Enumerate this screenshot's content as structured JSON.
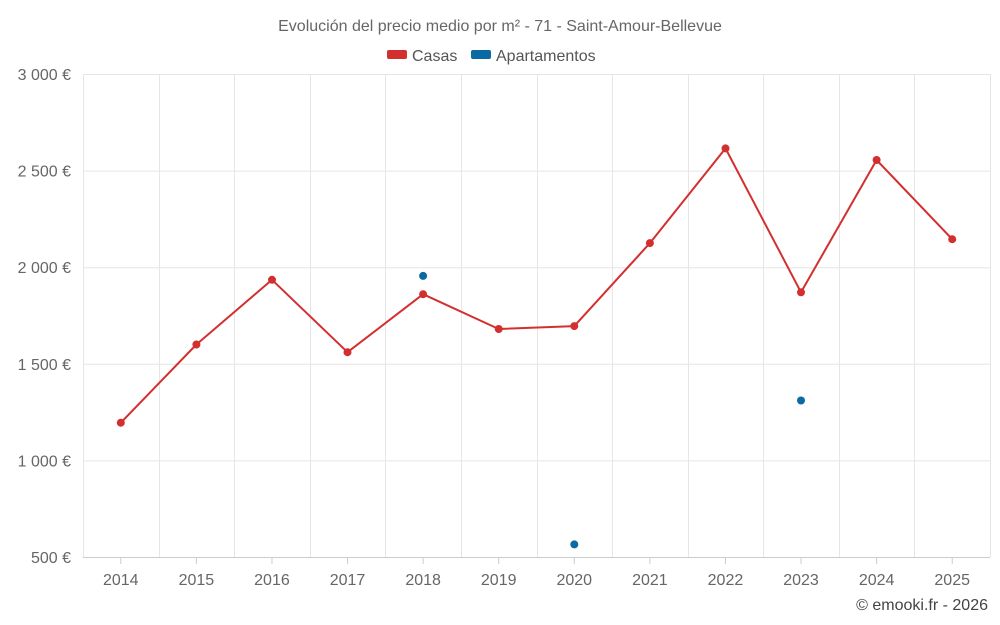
{
  "chart_data": {
    "type": "line",
    "title": "Evolución del precio medio por m² - 71 - Saint-Amour-Bellevue",
    "categories": [
      "2014",
      "2015",
      "2016",
      "2017",
      "2018",
      "2019",
      "2020",
      "2021",
      "2022",
      "2023",
      "2024",
      "2025"
    ],
    "series": [
      {
        "name": "Casas",
        "color": "#d32f2f",
        "style": "line",
        "values": [
          1195,
          1600,
          1935,
          1560,
          1860,
          1680,
          1695,
          2125,
          2615,
          1870,
          2555,
          2145
        ]
      },
      {
        "name": "Apartamentos",
        "color": "#0a6aa1",
        "style": "points",
        "values": [
          null,
          null,
          null,
          null,
          1955,
          null,
          565,
          null,
          null,
          1310,
          null,
          null
        ]
      }
    ],
    "ylim": [
      500,
      3000
    ],
    "yticks": [
      500,
      1000,
      1500,
      2000,
      2500,
      3000
    ],
    "ytick_labels": [
      "500 €",
      "1 000 €",
      "1 500 €",
      "2 000 €",
      "2 500 €",
      "3 000 €"
    ],
    "xlabel": "",
    "ylabel": "",
    "legend_position": "top-center",
    "grid": true
  },
  "credit": "© emooki.fr - 2026"
}
